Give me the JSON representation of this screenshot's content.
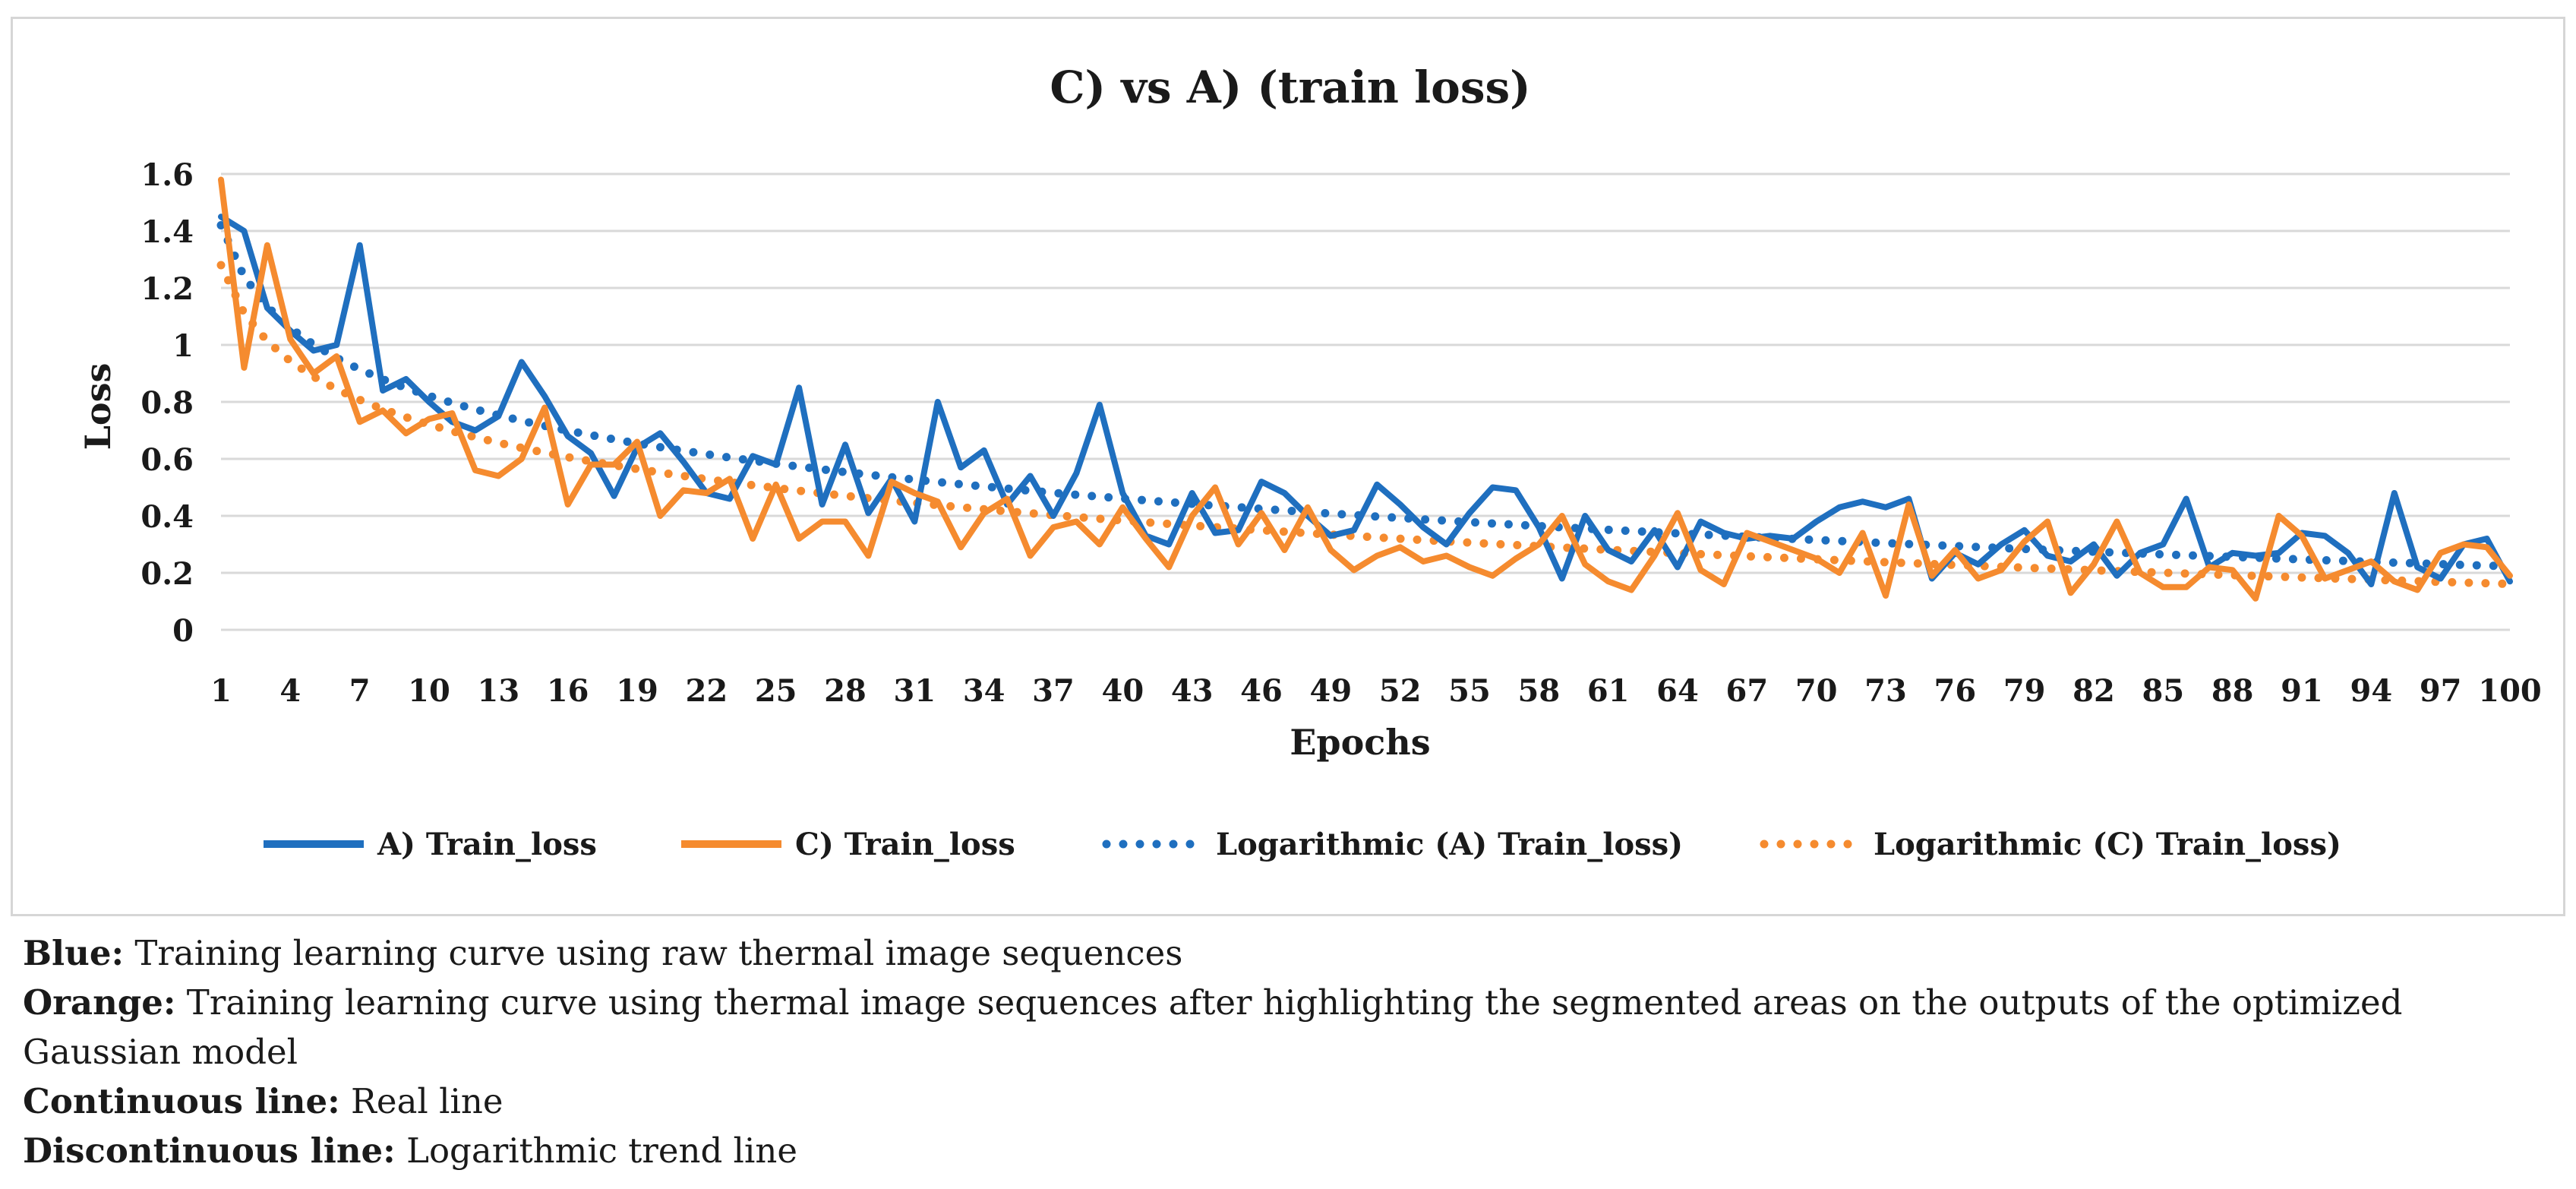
{
  "chart_data": {
    "type": "line",
    "title": "C) vs A) (train loss)",
    "xlabel": "Epochs",
    "ylabel": "Loss",
    "ylim": [
      0,
      1.6
    ],
    "yticks": [
      0,
      0.2,
      0.4,
      0.6,
      0.8,
      1,
      1.2,
      1.4,
      1.6
    ],
    "ytick_labels": [
      "0",
      "0.2",
      "0.4",
      "0.6",
      "0.8",
      "1",
      "1.2",
      "1.4",
      "1.6"
    ],
    "xlim": [
      1,
      100
    ],
    "xticks": [
      1,
      4,
      7,
      10,
      13,
      16,
      19,
      22,
      25,
      28,
      31,
      34,
      37,
      40,
      43,
      46,
      49,
      52,
      55,
      58,
      61,
      64,
      67,
      70,
      73,
      76,
      79,
      82,
      85,
      88,
      91,
      94,
      97,
      100
    ],
    "xtick_labels": [
      "1",
      "4",
      "7",
      "10",
      "13",
      "16",
      "19",
      "22",
      "25",
      "28",
      "31",
      "34",
      "37",
      "40",
      "43",
      "46",
      "49",
      "52",
      "55",
      "58",
      "61",
      "64",
      "67",
      "70",
      "73",
      "76",
      "79",
      "82",
      "85",
      "88",
      "91",
      "94",
      "97",
      "100"
    ],
    "grid": "horizontal",
    "legend_position": "bottom",
    "x": [
      1,
      2,
      3,
      4,
      5,
      6,
      7,
      8,
      9,
      10,
      11,
      12,
      13,
      14,
      15,
      16,
      17,
      18,
      19,
      20,
      21,
      22,
      23,
      24,
      25,
      26,
      27,
      28,
      29,
      30,
      31,
      32,
      33,
      34,
      35,
      36,
      37,
      38,
      39,
      40,
      41,
      42,
      43,
      44,
      45,
      46,
      47,
      48,
      49,
      50,
      51,
      52,
      53,
      54,
      55,
      56,
      57,
      58,
      59,
      60,
      61,
      62,
      63,
      64,
      65,
      66,
      67,
      68,
      69,
      70,
      71,
      72,
      73,
      74,
      75,
      76,
      77,
      78,
      79,
      80,
      81,
      82,
      83,
      84,
      85,
      86,
      87,
      88,
      89,
      90,
      91,
      92,
      93,
      94,
      95,
      96,
      97,
      98,
      99,
      100
    ],
    "series": [
      {
        "name": "A) Train_loss",
        "color": "#1f6fbf",
        "style": "solid",
        "values": [
          1.45,
          1.4,
          1.13,
          1.05,
          0.98,
          1.0,
          1.35,
          0.84,
          0.88,
          0.8,
          0.73,
          0.7,
          0.75,
          0.94,
          0.82,
          0.68,
          0.62,
          0.47,
          0.64,
          0.69,
          0.59,
          0.48,
          0.46,
          0.61,
          0.58,
          0.85,
          0.44,
          0.65,
          0.41,
          0.53,
          0.38,
          0.8,
          0.57,
          0.63,
          0.44,
          0.54,
          0.4,
          0.55,
          0.79,
          0.48,
          0.33,
          0.3,
          0.48,
          0.34,
          0.35,
          0.52,
          0.48,
          0.4,
          0.33,
          0.35,
          0.51,
          0.44,
          0.36,
          0.3,
          0.41,
          0.5,
          0.49,
          0.36,
          0.18,
          0.4,
          0.28,
          0.24,
          0.35,
          0.22,
          0.38,
          0.34,
          0.32,
          0.33,
          0.32,
          0.38,
          0.43,
          0.45,
          0.43,
          0.46,
          0.18,
          0.27,
          0.23,
          0.3,
          0.35,
          0.26,
          0.24,
          0.3,
          0.19,
          0.27,
          0.3,
          0.46,
          0.22,
          0.27,
          0.26,
          0.27,
          0.34,
          0.33,
          0.27,
          0.16,
          0.48,
          0.22,
          0.18,
          0.3,
          0.32,
          0.17
        ]
      },
      {
        "name": "C) Train_loss",
        "color": "#f58b2f",
        "style": "solid",
        "values": [
          1.58,
          0.92,
          1.35,
          1.02,
          0.9,
          0.96,
          0.73,
          0.77,
          0.69,
          0.74,
          0.76,
          0.56,
          0.54,
          0.6,
          0.78,
          0.44,
          0.58,
          0.58,
          0.66,
          0.4,
          0.49,
          0.48,
          0.53,
          0.32,
          0.51,
          0.32,
          0.38,
          0.38,
          0.26,
          0.52,
          0.48,
          0.45,
          0.29,
          0.41,
          0.46,
          0.26,
          0.36,
          0.38,
          0.3,
          0.43,
          0.32,
          0.22,
          0.4,
          0.5,
          0.3,
          0.41,
          0.28,
          0.43,
          0.28,
          0.21,
          0.26,
          0.29,
          0.24,
          0.26,
          0.22,
          0.19,
          0.25,
          0.3,
          0.4,
          0.23,
          0.17,
          0.14,
          0.26,
          0.41,
          0.21,
          0.16,
          0.34,
          0.31,
          0.28,
          0.25,
          0.2,
          0.34,
          0.12,
          0.44,
          0.19,
          0.28,
          0.18,
          0.21,
          0.31,
          0.38,
          0.13,
          0.23,
          0.38,
          0.2,
          0.15,
          0.15,
          0.22,
          0.21,
          0.11,
          0.4,
          0.33,
          0.18,
          0.21,
          0.24,
          0.17,
          0.14,
          0.27,
          0.3,
          0.29,
          0.19
        ]
      },
      {
        "name": "Logarithmic (A) Train_loss)",
        "color": "#1f6fbf",
        "style": "dotted",
        "trend": {
          "type": "log",
          "a": 1.42,
          "b": -0.26
        }
      },
      {
        "name": "Logarithmic (C) Train_loss)",
        "color": "#f58b2f",
        "style": "dotted",
        "trend": {
          "type": "log",
          "a": 1.28,
          "b": -0.243
        }
      }
    ]
  },
  "caption": {
    "line1": {
      "label": "Blue:",
      "text": " Training learning curve using raw thermal image sequences"
    },
    "line2": {
      "label": "Orange:",
      "text": " Training learning curve using thermal image sequences after highlighting the segmented areas on the outputs of the optimized Gaussian model"
    },
    "line3": {
      "label": "Continuous line:",
      "text": " Real line"
    },
    "line4": {
      "label": "Discontinuous line:",
      "text": " Logarithmic trend line"
    }
  }
}
